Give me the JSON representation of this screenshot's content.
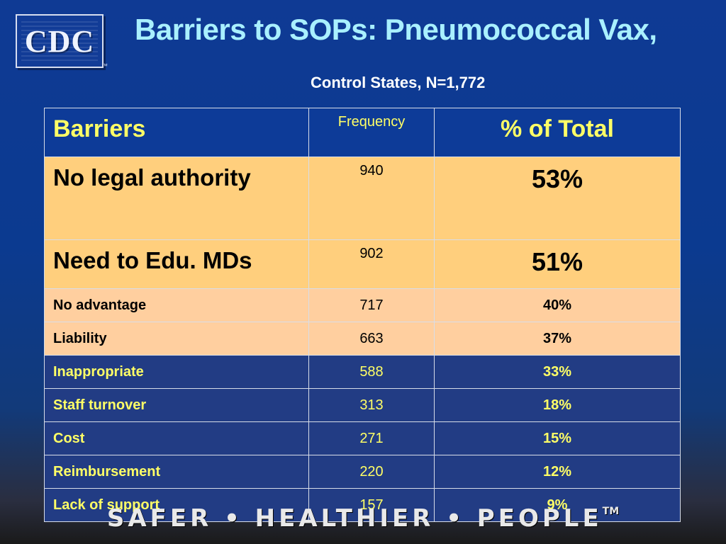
{
  "logo": {
    "text": "CDC",
    "trademark": "™"
  },
  "title": "Barriers to SOPs: Pneumococcal Vax,",
  "subtitle": "Control States, N=1,772",
  "table": {
    "headers": {
      "barrier": "Barriers",
      "frequency": "Frequency",
      "percent": "% of Total"
    },
    "rows": [
      {
        "barrier": "No legal authority",
        "frequency": "940",
        "percent": "53%"
      },
      {
        "barrier": "Need to Edu. MDs",
        "frequency": "902",
        "percent": "51%"
      },
      {
        "barrier": "No advantage",
        "frequency": "717",
        "percent": "40%"
      },
      {
        "barrier": "Liability",
        "frequency": "663",
        "percent": "37%"
      },
      {
        "barrier": "Inappropriate",
        "frequency": "588",
        "percent": "33%"
      },
      {
        "barrier": "Staff turnover",
        "frequency": "313",
        "percent": "18%"
      },
      {
        "barrier": "Cost",
        "frequency": "271",
        "percent": "15%"
      },
      {
        "barrier": "Reimbursement",
        "frequency": "220",
        "percent": "12%"
      },
      {
        "barrier": "Lack of support",
        "frequency": "157",
        "percent": "9%"
      }
    ]
  },
  "footer": {
    "text": "SAFER • HEALTHIER • PEOPLE",
    "trademark": "TM"
  },
  "colors": {
    "background": "#0f3a94",
    "title": "#a9f0ff",
    "header_text": "#ffff66",
    "highlight_row": "#ffcf7d",
    "light_row": "#ffcf9f",
    "blue_row": "#223c84"
  }
}
